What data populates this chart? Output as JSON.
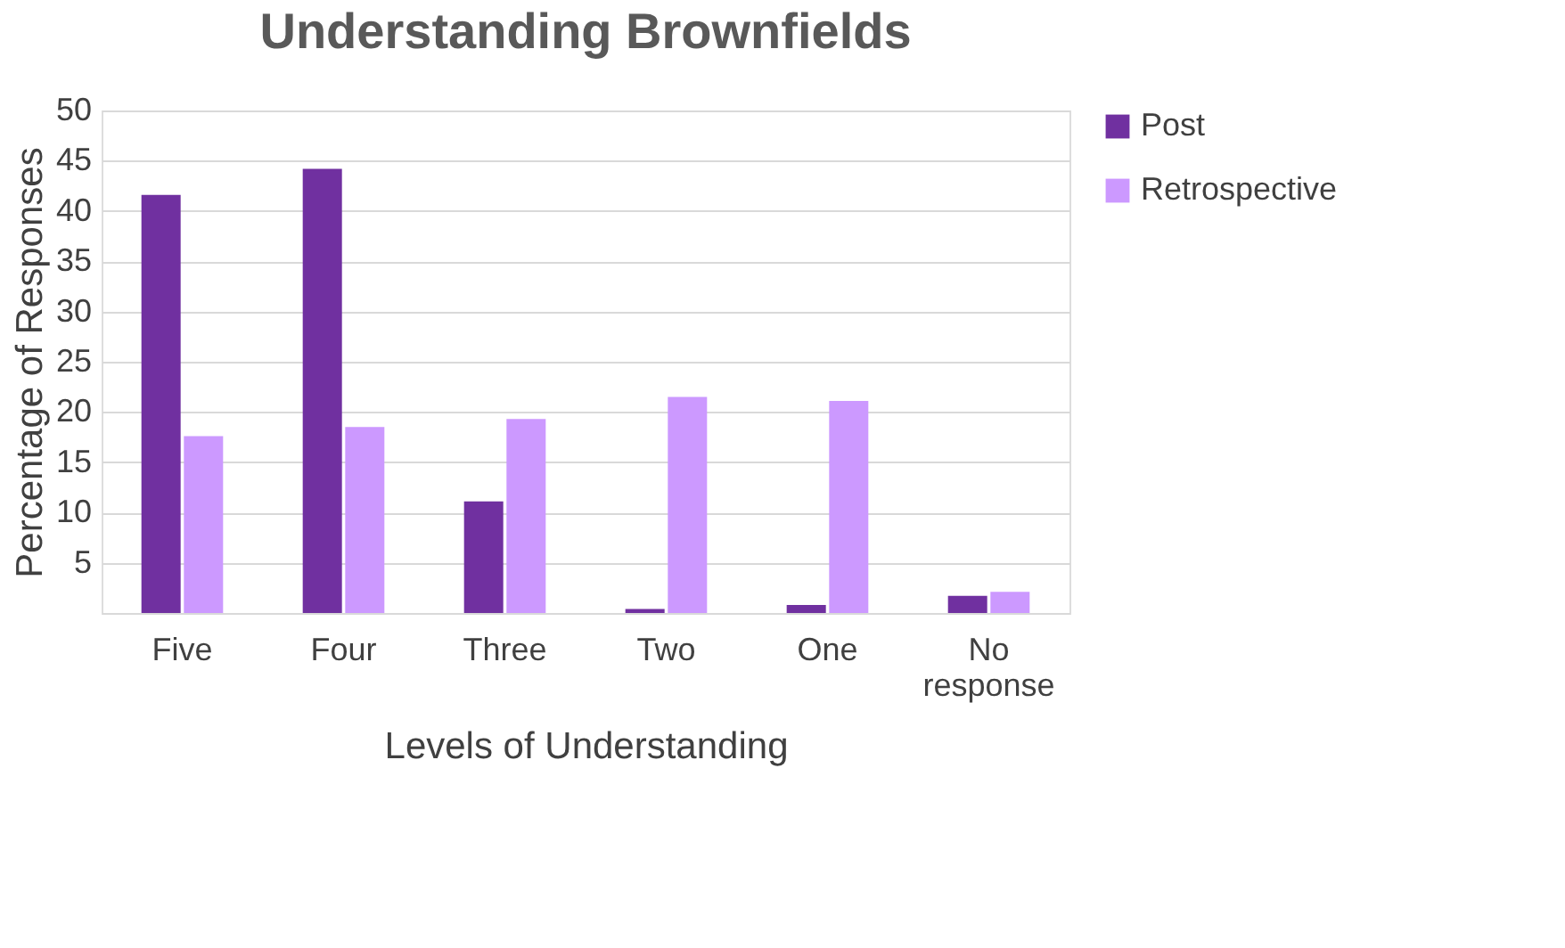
{
  "chart_data": {
    "type": "bar",
    "title": "Understanding Brownfields",
    "xlabel": "Levels of Understanding",
    "ylabel": "Percentage of Responses",
    "categories": [
      "Five",
      "Four",
      "Three",
      "Two",
      "One",
      "No response"
    ],
    "series": [
      {
        "name": "Post",
        "color": "#7030a0",
        "values": [
          41.6,
          44.2,
          11.1,
          0.4,
          0.8,
          1.7
        ]
      },
      {
        "name": "Retrospective",
        "color": "#cc99ff",
        "values": [
          17.6,
          18.5,
          19.3,
          21.5,
          21.1,
          2.1
        ]
      }
    ],
    "ylim": [
      0,
      50
    ],
    "yticks": [
      5,
      10,
      15,
      20,
      25,
      30,
      35,
      40,
      45,
      50
    ],
    "grid": "y",
    "legend": "right"
  }
}
